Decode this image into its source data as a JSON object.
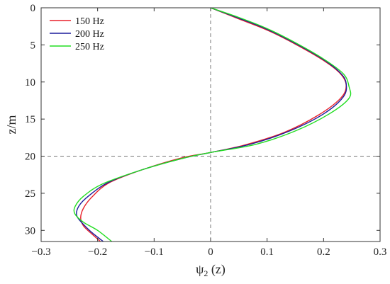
{
  "chart_data": {
    "type": "line",
    "title": "",
    "xlabel": "ψ",
    "xlabel_sub": "2",
    "xlabel_suffix": " (z)",
    "ylabel": "z/m",
    "xlim": [
      -0.3,
      0.3
    ],
    "ylim": [
      0,
      31.5
    ],
    "y_reversed": true,
    "xticks": [
      -0.3,
      -0.2,
      -0.1,
      0,
      0.1,
      0.2,
      0.3
    ],
    "xtick_labels": [
      "−0.3",
      "−0.2",
      "−0.1",
      "0",
      "0.1",
      "0.2",
      "0.3"
    ],
    "yticks": [
      0,
      5,
      10,
      15,
      20,
      25,
      30
    ],
    "ytick_labels": [
      "0",
      "5",
      "10",
      "15",
      "20",
      "25",
      "30"
    ],
    "grid": false,
    "reference_lines": {
      "x": 0,
      "y": 20
    },
    "legend_position": "top-left",
    "series": [
      {
        "name": "150 Hz",
        "color": "#e8202a",
        "points": [
          [
            0,
            0
          ],
          [
            0.05,
            1.5
          ],
          [
            0.1,
            3
          ],
          [
            0.15,
            4.9
          ],
          [
            0.2,
            7.1
          ],
          [
            0.23,
            8.9
          ],
          [
            0.24,
            10.5
          ],
          [
            0.23,
            12.2
          ],
          [
            0.19,
            14.5
          ],
          [
            0.13,
            16.8
          ],
          [
            0.06,
            18.5
          ],
          [
            0,
            19.5
          ],
          [
            -0.05,
            20.2
          ],
          [
            -0.12,
            21.8
          ],
          [
            -0.18,
            23.6
          ],
          [
            -0.21,
            25.5
          ],
          [
            -0.225,
            27
          ],
          [
            -0.23,
            28.3
          ],
          [
            -0.225,
            29.4
          ],
          [
            -0.21,
            30.5
          ],
          [
            -0.195,
            31.5
          ]
        ]
      },
      {
        "name": "200 Hz",
        "color": "#1c1c9c",
        "points": [
          [
            0,
            0
          ],
          [
            0.05,
            1.4
          ],
          [
            0.1,
            2.9
          ],
          [
            0.15,
            4.8
          ],
          [
            0.2,
            7
          ],
          [
            0.23,
            8.8
          ],
          [
            0.24,
            10.2
          ],
          [
            0.235,
            12
          ],
          [
            0.2,
            14.3
          ],
          [
            0.14,
            16.6
          ],
          [
            0.07,
            18.4
          ],
          [
            0,
            19.5
          ],
          [
            -0.05,
            20.3
          ],
          [
            -0.12,
            21.8
          ],
          [
            -0.18,
            23.5
          ],
          [
            -0.215,
            25.3
          ],
          [
            -0.233,
            26.7
          ],
          [
            -0.237,
            28
          ],
          [
            -0.225,
            29.2
          ],
          [
            -0.21,
            30.3
          ],
          [
            -0.19,
            31.5
          ]
        ]
      },
      {
        "name": "250 Hz",
        "color": "#22dd22",
        "points": [
          [
            0,
            0
          ],
          [
            0.05,
            1.3
          ],
          [
            0.1,
            2.8
          ],
          [
            0.15,
            4.7
          ],
          [
            0.2,
            6.9
          ],
          [
            0.235,
            8.9
          ],
          [
            0.245,
            10.6
          ],
          [
            0.245,
            12.2
          ],
          [
            0.21,
            14.3
          ],
          [
            0.15,
            16.6
          ],
          [
            0.08,
            18.4
          ],
          [
            0,
            19.5
          ],
          [
            -0.05,
            20.3
          ],
          [
            -0.12,
            21.8
          ],
          [
            -0.19,
            23.7
          ],
          [
            -0.225,
            25.4
          ],
          [
            -0.24,
            26.8
          ],
          [
            -0.24,
            27.8
          ],
          [
            -0.225,
            28.9
          ],
          [
            -0.2,
            30
          ],
          [
            -0.175,
            31.5
          ]
        ]
      }
    ]
  }
}
